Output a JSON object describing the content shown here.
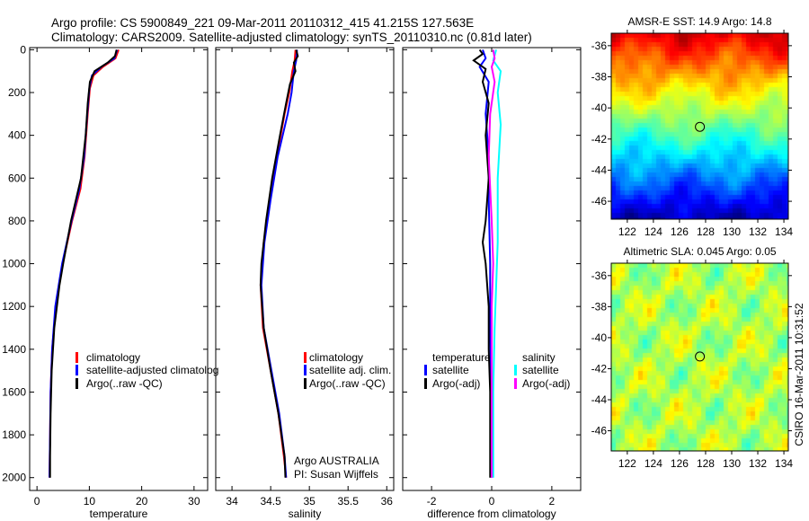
{
  "header": {
    "line1": "Argo profile: CS 5900849_221 09-Mar-2011 20110312_415 41.215S 127.563E",
    "line2": "Climatology: CARS2009. Satellite-adjusted climatology: synTS_20110310.nc (0.81d later)"
  },
  "footer": {
    "owner": "Argo AUSTRALIA",
    "pi": "PI: Susan Wijffels",
    "stamp": "CSIRO 16-Mar-2011 10:31:52"
  },
  "colors": {
    "red": "#ff0000",
    "blue": "#0000ff",
    "black": "#000000",
    "cyan": "#00ffff",
    "magenta": "#ff00ff"
  },
  "chart_data": [
    {
      "type": "line",
      "xlabel": "temperature",
      "ylabel": "",
      "xlim": [
        -1.4,
        32.6
      ],
      "ylim": [
        2060,
        -10
      ],
      "xticks": [
        "0",
        "10",
        "20",
        "30"
      ],
      "xtick_values": [
        0,
        10,
        20,
        30
      ],
      "yticks": [
        "0",
        "200",
        "400",
        "600",
        "800",
        "1000",
        "1200",
        "1400",
        "1600",
        "1800",
        "2000"
      ],
      "ytick_values": [
        0,
        200,
        400,
        600,
        800,
        1000,
        1200,
        1400,
        1600,
        1800,
        2000
      ],
      "legend": [
        "climatology",
        "satellite-adjusted climatolog",
        "Argo(..raw -QC)"
      ],
      "series": [
        {
          "name": "climatology",
          "color": "#ff0000",
          "depth": [
            0,
            40,
            80,
            120,
            180,
            300,
            500,
            650,
            800,
            1000,
            1200,
            1400,
            1600,
            1800,
            2000
          ],
          "values": [
            15.6,
            15.0,
            12.6,
            10.8,
            10.1,
            9.7,
            9.1,
            8.3,
            6.7,
            4.9,
            3.6,
            2.9,
            2.6,
            2.5,
            2.4
          ]
        },
        {
          "name": "satellite-adjusted climatology",
          "color": "#0000ff",
          "depth": [
            0,
            40,
            80,
            120,
            180,
            300,
            500,
            650,
            800,
            1000,
            1200,
            1400,
            1600,
            1800,
            2000
          ],
          "values": [
            15.3,
            14.8,
            12.3,
            10.5,
            10.0,
            9.6,
            9.0,
            8.1,
            6.6,
            4.8,
            3.5,
            2.9,
            2.6,
            2.5,
            2.4
          ]
        },
        {
          "name": "Argo(..raw -QC)",
          "color": "#000000",
          "depth": [
            0,
            30,
            60,
            100,
            150,
            250,
            400,
            600,
            800,
            1000,
            1100,
            1300,
            1500,
            1700,
            1900,
            2000
          ],
          "values": [
            15.2,
            14.9,
            13.5,
            11.0,
            10.1,
            9.7,
            9.3,
            8.4,
            6.5,
            5.0,
            4.3,
            3.3,
            2.8,
            2.6,
            2.5,
            2.5
          ]
        }
      ]
    },
    {
      "type": "line",
      "xlabel": "salinity",
      "xlim": [
        33.79,
        36.09
      ],
      "ylim": [
        2060,
        -10
      ],
      "xticks": [
        "34",
        "34.5",
        "35",
        "35.5",
        "36"
      ],
      "xtick_values": [
        34,
        34.5,
        35,
        35.5,
        36
      ],
      "legend": [
        "climatology",
        "satellite adj. clim.",
        "Argo(..raw -QC)"
      ],
      "series": [
        {
          "name": "climatology",
          "color": "#ff0000",
          "depth": [
            0,
            50,
            100,
            200,
            300,
            500,
            700,
            900,
            1100,
            1300,
            1500,
            1700,
            1900,
            2000
          ],
          "values": [
            34.82,
            34.81,
            34.78,
            34.74,
            34.68,
            34.58,
            34.49,
            34.41,
            34.37,
            34.4,
            34.5,
            34.6,
            34.67,
            34.7
          ]
        },
        {
          "name": "satellite adj. clim.",
          "color": "#0000ff",
          "depth": [
            0,
            50,
            100,
            200,
            300,
            500,
            700,
            900,
            1100,
            1300,
            1500,
            1700,
            1900,
            2000
          ],
          "values": [
            34.84,
            34.83,
            34.8,
            34.77,
            34.72,
            34.59,
            34.5,
            34.42,
            34.38,
            34.41,
            34.51,
            34.61,
            34.68,
            34.7
          ]
        },
        {
          "name": "Argo(..raw -QC)",
          "color": "#000000",
          "depth": [
            0,
            30,
            60,
            100,
            160,
            250,
            400,
            600,
            800,
            1000,
            1100,
            1300,
            1500,
            1700,
            1900,
            2000
          ],
          "values": [
            34.83,
            34.85,
            34.8,
            34.82,
            34.75,
            34.7,
            34.62,
            34.52,
            34.44,
            34.38,
            34.37,
            34.41,
            34.5,
            34.6,
            34.68,
            34.69
          ]
        }
      ]
    },
    {
      "type": "line",
      "xlabel": "difference from climatology",
      "xlim": [
        -2.96,
        2.96
      ],
      "ylim": [
        2060,
        -10
      ],
      "xticks": [
        "-2",
        "0",
        "2"
      ],
      "xtick_values": [
        -2,
        0,
        2
      ],
      "legend_headers": [
        "temperature",
        "salinity"
      ],
      "legend": [
        "satellite",
        "Argo(-adj)",
        "satellite",
        "Argo(-adj)"
      ],
      "series": [
        {
          "name": "temperature satellite",
          "color": "#0000ff",
          "depth": [
            0,
            40,
            80,
            150,
            300,
            500,
            700,
            1000,
            1300,
            1600,
            2000
          ],
          "values": [
            -0.3,
            -0.2,
            -0.4,
            -0.1,
            -0.2,
            -0.1,
            -0.1,
            -0.05,
            -0.05,
            -0.02,
            0.0
          ]
        },
        {
          "name": "temperature Argo(-adj)",
          "color": "#000000",
          "depth": [
            0,
            20,
            50,
            90,
            150,
            250,
            400,
            600,
            800,
            900,
            1000,
            1200,
            1400,
            1600,
            1800,
            2000
          ],
          "values": [
            -0.4,
            -0.3,
            -0.6,
            -0.2,
            -0.3,
            -0.1,
            -0.2,
            -0.1,
            -0.2,
            -0.3,
            -0.2,
            -0.1,
            -0.1,
            -0.05,
            -0.05,
            -0.05
          ]
        },
        {
          "name": "salinity satellite",
          "color": "#00ffff",
          "depth": [
            0,
            50,
            100,
            200,
            350,
            600,
            900,
            1100,
            1300,
            1600,
            1800,
            2000
          ],
          "values": [
            0.15,
            0.05,
            0.3,
            0.2,
            0.3,
            0.2,
            0.2,
            0.15,
            0.1,
            0.05,
            0.05,
            0.05
          ]
        },
        {
          "name": "salinity Argo(-adj)",
          "color": "#ff00ff",
          "depth": [
            0,
            40,
            80,
            150,
            300,
            500,
            800,
            1000,
            1200,
            1500,
            1800,
            2000
          ],
          "values": [
            0.05,
            0.1,
            0.0,
            0.1,
            -0.05,
            -0.1,
            0.0,
            0.05,
            0.0,
            0.0,
            0.0,
            0.0
          ]
        }
      ]
    },
    {
      "type": "heatmap",
      "title": "AMSR-E SST: 14.9 Argo: 14.8",
      "xlim": [
        120.77,
        134.34
      ],
      "ylim": [
        -47.15,
        -35.2
      ],
      "xticks": [
        "122",
        "124",
        "126",
        "128",
        "130",
        "132",
        "134"
      ],
      "xtick_values": [
        122,
        124,
        126,
        128,
        130,
        132,
        134
      ],
      "yticks": [
        "-36",
        "-38",
        "-40",
        "-42",
        "-44",
        "-46"
      ],
      "ytick_values": [
        -36,
        -38,
        -40,
        -42,
        -44,
        -46
      ],
      "marker": {
        "lon": 127.563,
        "lat": -41.215
      },
      "colormap": "jet"
    },
    {
      "type": "heatmap",
      "title": "Altimetric SLA: 0.045 Argo: 0.05",
      "xlim": [
        120.77,
        134.34
      ],
      "ylim": [
        -47.3,
        -35.2
      ],
      "xticks": [
        "122",
        "124",
        "126",
        "128",
        "130",
        "132",
        "134"
      ],
      "xtick_values": [
        122,
        124,
        126,
        128,
        130,
        132,
        134
      ],
      "yticks": [
        "-36",
        "-38",
        "-40",
        "-42",
        "-44",
        "-46"
      ],
      "ytick_values": [
        -36,
        -38,
        -40,
        -42,
        -44,
        -46
      ],
      "marker": {
        "lon": 127.563,
        "lat": -41.215
      },
      "colormap": "jet"
    }
  ]
}
